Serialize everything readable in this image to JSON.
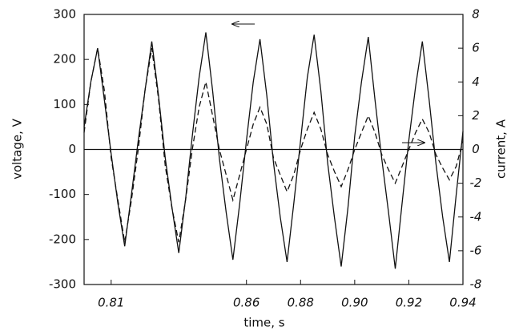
{
  "chart_data": {
    "type": "line",
    "x_label": "time, s",
    "y_label": "voltage, V",
    "y2_label": "current, A",
    "x": [
      0.8,
      0.8025,
      0.805,
      0.8075,
      0.81,
      0.8125,
      0.815,
      0.8175,
      0.82,
      0.8225,
      0.825,
      0.8275,
      0.83,
      0.8325,
      0.835,
      0.8375,
      0.84,
      0.8425,
      0.845,
      0.8475,
      0.85,
      0.8525,
      0.855,
      0.8575,
      0.86,
      0.8625,
      0.865,
      0.8675,
      0.87,
      0.8725,
      0.875,
      0.8775,
      0.88,
      0.8825,
      0.885,
      0.8875,
      0.89,
      0.8925,
      0.895,
      0.8975,
      0.9,
      0.9025,
      0.905,
      0.9075,
      0.91,
      0.9125,
      0.915,
      0.9175,
      0.92,
      0.9225,
      0.925,
      0.9275,
      0.93,
      0.9325,
      0.935,
      0.9375,
      0.94
    ],
    "series": [
      {
        "name": "voltage",
        "color": "#111111",
        "dash": false,
        "values": [
          50,
          150,
          225,
          110,
          -10,
          -120,
          -215,
          -100,
          20,
          130,
          240,
          120,
          -20,
          -130,
          -230,
          -110,
          30,
          160,
          260,
          130,
          -20,
          -140,
          -245,
          -120,
          20,
          150,
          245,
          120,
          -30,
          -150,
          -250,
          -120,
          20,
          160,
          255,
          130,
          -30,
          -150,
          -260,
          -130,
          30,
          150,
          250,
          110,
          -20,
          -140,
          -265,
          -120,
          20,
          140,
          240,
          110,
          -30,
          -150,
          -250,
          -100,
          40
        ]
      },
      {
        "name": "current",
        "color": "#111111",
        "dash": true,
        "axis": "y2",
        "values": [
          1,
          4,
          6,
          3.5,
          -0.5,
          -3,
          -5.5,
          -3,
          0,
          3.5,
          6,
          3,
          -1,
          -3.5,
          -5.5,
          -3,
          0,
          2.5,
          4,
          2,
          0,
          -1.5,
          -3,
          -1.5,
          0,
          1.5,
          2.5,
          1.5,
          -0.5,
          -1.5,
          -2.5,
          -1.5,
          0,
          1.2,
          2.2,
          1.2,
          -0.3,
          -1.3,
          -2.2,
          -1.2,
          0,
          1,
          2,
          1,
          -0.3,
          -1.2,
          -2,
          -1,
          0,
          1,
          1.8,
          1,
          -0.3,
          -1.1,
          -1.8,
          -1,
          0.5
        ]
      }
    ],
    "xlim": [
      0.8,
      0.94
    ],
    "xticks": [
      0.81,
      0.86,
      0.88,
      {
        "value": 0.9,
        "label": "0.90"
      },
      0.92,
      0.94
    ],
    "ylim": [
      -300,
      300
    ],
    "yticks": [
      -300,
      -200,
      -100,
      0,
      100,
      200,
      300
    ],
    "y2lim": [
      -8,
      8
    ],
    "y2ticks": [
      -8,
      -6,
      -4,
      -2,
      0,
      2,
      4,
      6,
      8
    ]
  }
}
